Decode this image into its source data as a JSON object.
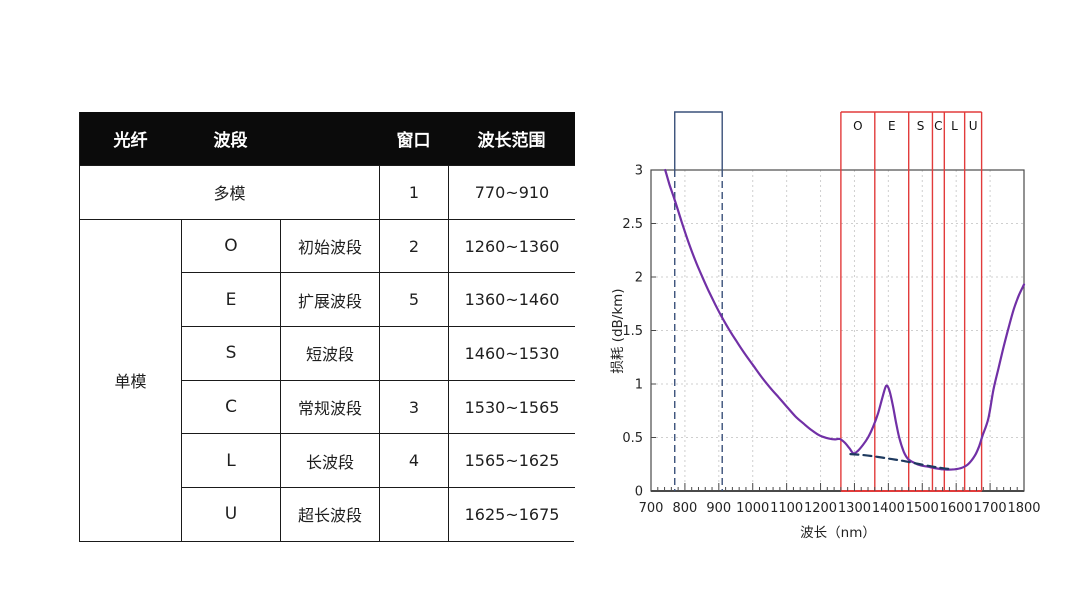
{
  "table": {
    "header": {
      "fiber": "光纤",
      "band": "波段",
      "window": "窗口",
      "range": "波长范围"
    },
    "multimode_row": {
      "label": "多模",
      "window": "1",
      "range": "770~910"
    },
    "singlemode_label": "单模",
    "singlemode_rows": [
      {
        "letter": "O",
        "name": "初始波段",
        "window": "2",
        "range": "1260~1360"
      },
      {
        "letter": "E",
        "name": "扩展波段",
        "window": "5",
        "range": "1360~1460"
      },
      {
        "letter": "S",
        "name": "短波段",
        "window": "",
        "range": "1460~1530"
      },
      {
        "letter": "C",
        "name": "常规波段",
        "window": "3",
        "range": "1530~1565"
      },
      {
        "letter": "L",
        "name": "长波段",
        "window": "4",
        "range": "1565~1625"
      },
      {
        "letter": "U",
        "name": "超长波段",
        "window": "",
        "range": "1625~1675"
      }
    ]
  },
  "chart_data": {
    "type": "line",
    "xlabel": "波长（nm）",
    "ylabel": "损耗 (dB/km)",
    "xlim": [
      700,
      1800
    ],
    "ylim": [
      0,
      3
    ],
    "x_ticks": [
      700,
      800,
      900,
      1000,
      1100,
      1200,
      1300,
      1400,
      1500,
      1600,
      1700,
      1800
    ],
    "y_ticks": [
      0,
      0.5,
      1,
      1.5,
      2,
      2.5,
      3
    ],
    "x_minor_step": 20,
    "grid": true,
    "colors": {
      "curve": "#7130a6",
      "dashed": "#1e3a5f",
      "bands": "#e23b3b",
      "window": "#3a517a",
      "frame": "#4a4a4a",
      "gridline": "#cfcfcf"
    },
    "series": [
      {
        "name": "attenuation-curve",
        "style": "solid",
        "points": [
          [
            742,
            3.0
          ],
          [
            755,
            2.86
          ],
          [
            770,
            2.72
          ],
          [
            790,
            2.52
          ],
          [
            810,
            2.33
          ],
          [
            830,
            2.16
          ],
          [
            850,
            2.01
          ],
          [
            870,
            1.87
          ],
          [
            890,
            1.74
          ],
          [
            910,
            1.62
          ],
          [
            930,
            1.51
          ],
          [
            950,
            1.41
          ],
          [
            975,
            1.29
          ],
          [
            1000,
            1.18
          ],
          [
            1025,
            1.07
          ],
          [
            1050,
            0.97
          ],
          [
            1075,
            0.88
          ],
          [
            1100,
            0.79
          ],
          [
            1125,
            0.7
          ],
          [
            1150,
            0.63
          ],
          [
            1175,
            0.565
          ],
          [
            1200,
            0.515
          ],
          [
            1225,
            0.49
          ],
          [
            1243,
            0.482
          ],
          [
            1257,
            0.486
          ],
          [
            1272,
            0.45
          ],
          [
            1285,
            0.4
          ],
          [
            1297,
            0.352
          ],
          [
            1310,
            0.375
          ],
          [
            1325,
            0.43
          ],
          [
            1340,
            0.5
          ],
          [
            1355,
            0.6
          ],
          [
            1370,
            0.73
          ],
          [
            1382,
            0.87
          ],
          [
            1393,
            0.98
          ],
          [
            1402,
            0.95
          ],
          [
            1412,
            0.82
          ],
          [
            1422,
            0.65
          ],
          [
            1432,
            0.5
          ],
          [
            1445,
            0.37
          ],
          [
            1458,
            0.3
          ],
          [
            1475,
            0.265
          ],
          [
            1495,
            0.24
          ],
          [
            1515,
            0.228
          ],
          [
            1535,
            0.215
          ],
          [
            1555,
            0.205
          ],
          [
            1575,
            0.2
          ],
          [
            1595,
            0.203
          ],
          [
            1615,
            0.215
          ],
          [
            1635,
            0.25
          ],
          [
            1655,
            0.33
          ],
          [
            1668,
            0.42
          ],
          [
            1678,
            0.52
          ],
          [
            1695,
            0.68
          ],
          [
            1710,
            0.95
          ],
          [
            1725,
            1.15
          ],
          [
            1740,
            1.35
          ],
          [
            1755,
            1.53
          ],
          [
            1770,
            1.7
          ],
          [
            1785,
            1.83
          ],
          [
            1800,
            1.93
          ]
        ]
      },
      {
        "name": "rayleigh-limit-dashed",
        "style": "dashed",
        "points": [
          [
            1288,
            0.345
          ],
          [
            1330,
            0.335
          ],
          [
            1370,
            0.318
          ],
          [
            1410,
            0.298
          ],
          [
            1450,
            0.278
          ],
          [
            1490,
            0.252
          ],
          [
            1530,
            0.228
          ],
          [
            1560,
            0.213
          ],
          [
            1590,
            0.202
          ]
        ]
      }
    ],
    "bands": {
      "labels": [
        "O",
        "E",
        "S",
        "C",
        "L",
        "U"
      ],
      "edges": [
        1260,
        1360,
        1460,
        1530,
        1565,
        1625,
        1675
      ]
    },
    "multimode_window": {
      "from": 770,
      "to": 910
    }
  }
}
